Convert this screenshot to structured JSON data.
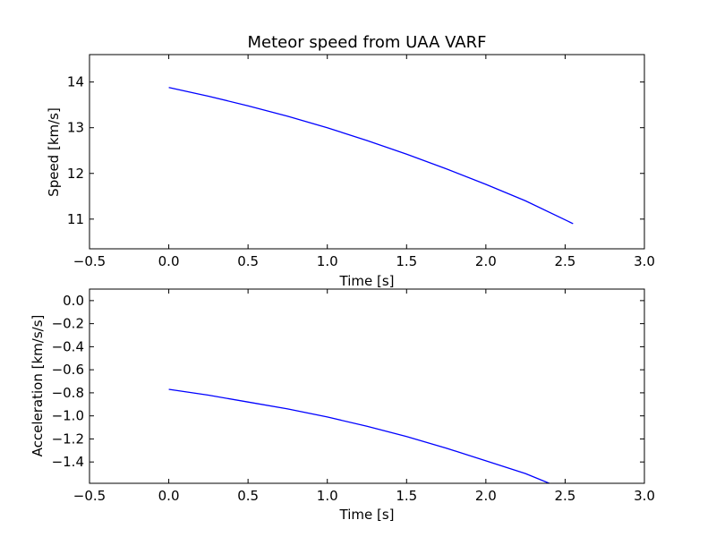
{
  "chart_data": [
    {
      "type": "line",
      "title": "Meteor speed from  UAA VARF",
      "xlabel": "Time [s]",
      "ylabel": "Speed [km/s]",
      "xlim": [
        -0.5,
        3.0
      ],
      "ylim": [
        10.35,
        14.6
      ],
      "xticks": [
        "−0.5",
        "0.0",
        "0.5",
        "1.0",
        "1.5",
        "2.0",
        "2.5",
        "3.0"
      ],
      "yticks": [
        "11",
        "12",
        "13",
        "14"
      ],
      "grid": false,
      "series": [
        {
          "color": "#0000ff",
          "x": [
            0.0,
            0.25,
            0.5,
            0.75,
            1.0,
            1.25,
            1.5,
            1.75,
            2.0,
            2.25,
            2.55
          ],
          "y": [
            13.88,
            13.69,
            13.48,
            13.25,
            13.0,
            12.72,
            12.42,
            12.1,
            11.76,
            11.4,
            10.9
          ]
        }
      ]
    },
    {
      "type": "line",
      "title": "",
      "xlabel": "Time [s]",
      "ylabel": "Acceleration [km/s/s]",
      "xlim": [
        -0.5,
        3.0
      ],
      "ylim": [
        -1.585,
        0.1
      ],
      "xticks": [
        "−0.5",
        "0.0",
        "0.5",
        "1.0",
        "1.5",
        "2.0",
        "2.5",
        "3.0"
      ],
      "yticks": [
        "0.0",
        "−0.2",
        "−0.4",
        "−0.6",
        "−0.8",
        "−1.0",
        "−1.2",
        "−1.4"
      ],
      "grid": false,
      "series": [
        {
          "color": "#0000ff",
          "x": [
            0.0,
            0.25,
            0.5,
            0.75,
            1.0,
            1.25,
            1.5,
            1.75,
            2.0,
            2.25,
            2.4
          ],
          "y": [
            -0.77,
            -0.82,
            -0.88,
            -0.94,
            -1.01,
            -1.09,
            -1.18,
            -1.28,
            -1.39,
            -1.5,
            -1.585
          ]
        }
      ]
    }
  ]
}
